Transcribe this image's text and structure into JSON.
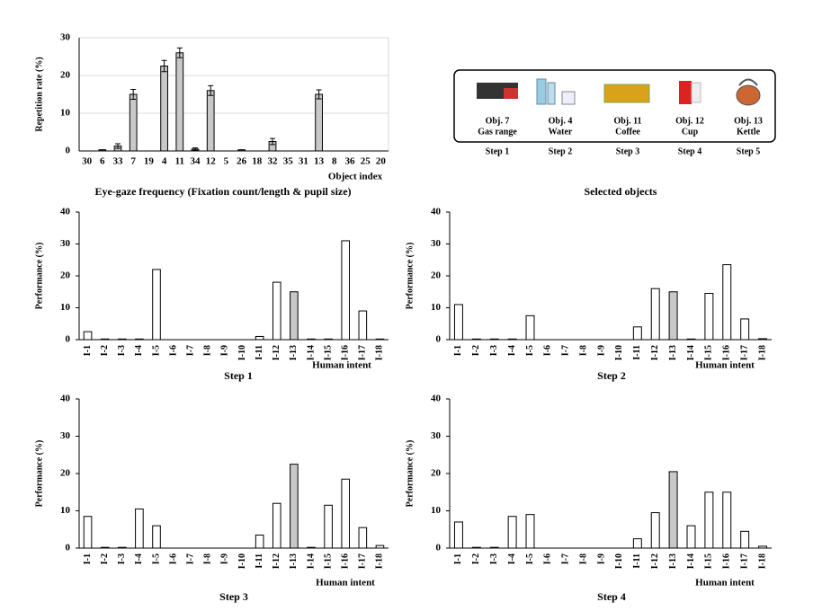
{
  "chart_data": [
    {
      "type": "bar",
      "title": "Eye-gaze frequency (Fixation count/length & pupil size)",
      "ylabel": "Repetition rate (%)",
      "xlabel": "Object index",
      "categories": [
        "30",
        "6",
        "33",
        "7",
        "19",
        "4",
        "11",
        "34",
        "12",
        "5",
        "26",
        "18",
        "32",
        "35",
        "31",
        "13",
        "8",
        "36",
        "25",
        "20"
      ],
      "values": [
        0,
        0.3,
        1.3,
        15,
        0,
        22.5,
        26,
        0.5,
        16,
        0,
        0.3,
        0,
        2.5,
        0,
        0,
        15,
        0,
        0,
        0,
        0
      ],
      "errors": [
        0,
        0,
        0.6,
        1.3,
        0,
        1.5,
        1.3,
        0.3,
        1.3,
        0,
        0,
        0,
        0.8,
        0,
        0,
        1.2,
        0,
        0,
        0,
        0
      ],
      "color": "#c8c8c8",
      "ylim": [
        0,
        30
      ],
      "yticks": [
        0,
        10,
        20,
        30
      ],
      "grid": true
    },
    {
      "type": "bar",
      "title": "Step 1",
      "ylabel": "Performance (%)",
      "xlabel": "Human intent",
      "categories": [
        "I-1",
        "I-2",
        "I-3",
        "I-4",
        "I-5",
        "I-6",
        "I-7",
        "I-8",
        "I-9",
        "I-10",
        "I-11",
        "I-12",
        "I-13",
        "I-14",
        "I-15",
        "I-16",
        "I-17",
        "I-18"
      ],
      "values": [
        2.5,
        0.2,
        0.2,
        0.2,
        22,
        0,
        0,
        0,
        0,
        0,
        1,
        18,
        15,
        0.2,
        0.2,
        31,
        9,
        0.2
      ],
      "colors": [
        "#ffffff",
        "#ffffff",
        "#ffffff",
        "#ffffff",
        "#ffffff",
        "#ffffff",
        "#ffffff",
        "#ffffff",
        "#ffffff",
        "#ffffff",
        "#ffffff",
        "#ffffff",
        "#c8c8c8",
        "#ffffff",
        "#ffffff",
        "#ffffff",
        "#ffffff",
        "#ffffff"
      ],
      "ylim": [
        0,
        40
      ],
      "yticks": [
        0,
        10,
        20,
        30,
        40
      ],
      "grid": false
    },
    {
      "type": "bar",
      "title": "Step 2",
      "ylabel": "Performance (%)",
      "xlabel": "Human intent",
      "categories": [
        "I-1",
        "I-2",
        "I-3",
        "I-4",
        "I-5",
        "I-6",
        "I-7",
        "I-8",
        "I-9",
        "I-10",
        "I-11",
        "I-12",
        "I-13",
        "I-14",
        "I-15",
        "I-16",
        "I-17",
        "I-18"
      ],
      "values": [
        11,
        0.2,
        0.2,
        0.2,
        7.5,
        0,
        0,
        0,
        0,
        0,
        4,
        16,
        15,
        0.2,
        14.5,
        23.5,
        6.5,
        0.3
      ],
      "colors": [
        "#ffffff",
        "#ffffff",
        "#ffffff",
        "#ffffff",
        "#ffffff",
        "#ffffff",
        "#ffffff",
        "#ffffff",
        "#ffffff",
        "#ffffff",
        "#ffffff",
        "#ffffff",
        "#c8c8c8",
        "#ffffff",
        "#ffffff",
        "#ffffff",
        "#ffffff",
        "#ffffff"
      ],
      "ylim": [
        0,
        40
      ],
      "yticks": [
        0,
        10,
        20,
        30,
        40
      ],
      "grid": false
    },
    {
      "type": "bar",
      "title": "Step 3",
      "ylabel": "Performance (%)",
      "xlabel": "Human intent",
      "categories": [
        "I-1",
        "I-2",
        "I-3",
        "I-4",
        "I-5",
        "I-6",
        "I-7",
        "I-8",
        "I-9",
        "I-10",
        "I-11",
        "I-12",
        "I-13",
        "I-14",
        "I-15",
        "I-16",
        "I-17",
        "I-18"
      ],
      "values": [
        8.5,
        0.2,
        0.2,
        10.5,
        6,
        0,
        0,
        0,
        0,
        0,
        3.5,
        12,
        22.5,
        0.2,
        11.5,
        18.5,
        5.5,
        0.7
      ],
      "colors": [
        "#ffffff",
        "#ffffff",
        "#ffffff",
        "#ffffff",
        "#ffffff",
        "#ffffff",
        "#ffffff",
        "#ffffff",
        "#ffffff",
        "#ffffff",
        "#ffffff",
        "#ffffff",
        "#c8c8c8",
        "#ffffff",
        "#ffffff",
        "#ffffff",
        "#ffffff",
        "#ffffff"
      ],
      "ylim": [
        0,
        40
      ],
      "yticks": [
        0,
        10,
        20,
        30,
        40
      ],
      "grid": false
    },
    {
      "type": "bar",
      "title": "Step 4",
      "ylabel": "Performance (%)",
      "xlabel": "Human intent",
      "categories": [
        "I-1",
        "I-2",
        "I-3",
        "I-4",
        "I-5",
        "I-6",
        "I-7",
        "I-8",
        "I-9",
        "I-10",
        "I-11",
        "I-12",
        "I-13",
        "I-14",
        "I-15",
        "I-16",
        "I-17",
        "I-18"
      ],
      "values": [
        7,
        0.2,
        0.2,
        8.5,
        9,
        0,
        0,
        0,
        0,
        0,
        2.5,
        9.5,
        20.5,
        6,
        15,
        15,
        4.5,
        0.5
      ],
      "colors": [
        "#ffffff",
        "#ffffff",
        "#ffffff",
        "#ffffff",
        "#ffffff",
        "#ffffff",
        "#ffffff",
        "#ffffff",
        "#ffffff",
        "#ffffff",
        "#ffffff",
        "#ffffff",
        "#c8c8c8",
        "#ffffff",
        "#ffffff",
        "#ffffff",
        "#ffffff",
        "#ffffff"
      ],
      "ylim": [
        0,
        40
      ],
      "yticks": [
        0,
        10,
        20,
        30,
        40
      ],
      "grid": false
    }
  ],
  "selected_objects": {
    "title": "Selected objects",
    "items": [
      {
        "label": "Obj. 7",
        "name": "Gas range",
        "step": "Step 1"
      },
      {
        "label": "Obj. 4",
        "name": "Water",
        "step": "Step 2"
      },
      {
        "label": "Obj. 11",
        "name": "Coffee",
        "step": "Step 3"
      },
      {
        "label": "Obj. 12",
        "name": "Cup",
        "step": "Step 4"
      },
      {
        "label": "Obj. 13",
        "name": "Kettle",
        "step": "Step 5"
      }
    ]
  }
}
